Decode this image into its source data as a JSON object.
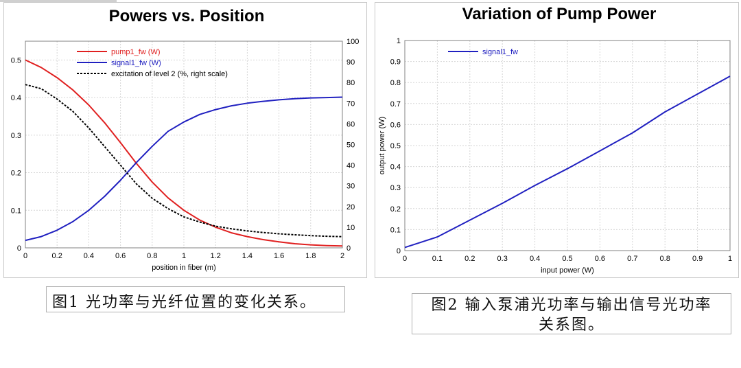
{
  "chart_data": [
    {
      "type": "line",
      "title": "Powers vs. Position",
      "xlabel": "position in fiber (m)",
      "ylabel": "",
      "y2label": "",
      "xlim": [
        0,
        2
      ],
      "ylim": [
        0,
        0.55
      ],
      "y2lim": [
        0,
        100
      ],
      "x_ticks": [
        "0",
        "0.2",
        "0.4",
        "0.6",
        "0.8",
        "1",
        "1.2",
        "1.4",
        "1.6",
        "1.8",
        "2"
      ],
      "y_ticks": [
        "0",
        "0.1",
        "0.2",
        "0.3",
        "0.4",
        "0.5"
      ],
      "y2_ticks": [
        "0",
        "10",
        "20",
        "30",
        "40",
        "50",
        "60",
        "70",
        "80",
        "90",
        "100"
      ],
      "grid": true,
      "legend_position": "top-left",
      "series": [
        {
          "name": "pump1_fw (W)",
          "color": "#e02020",
          "axis": "left",
          "style": "solid",
          "x": [
            0,
            0.1,
            0.2,
            0.3,
            0.4,
            0.5,
            0.6,
            0.7,
            0.8,
            0.9,
            1.0,
            1.1,
            1.2,
            1.3,
            1.4,
            1.5,
            1.6,
            1.7,
            1.8,
            1.9,
            2.0
          ],
          "y": [
            0.5,
            0.48,
            0.453,
            0.42,
            0.38,
            0.333,
            0.28,
            0.225,
            0.175,
            0.133,
            0.1,
            0.074,
            0.055,
            0.04,
            0.03,
            0.022,
            0.016,
            0.011,
            0.008,
            0.006,
            0.005
          ]
        },
        {
          "name": "signal1_fw (W)",
          "color": "#2020c0",
          "axis": "left",
          "style": "solid",
          "x": [
            0,
            0.1,
            0.2,
            0.3,
            0.4,
            0.5,
            0.6,
            0.7,
            0.8,
            0.9,
            1.0,
            1.1,
            1.2,
            1.3,
            1.4,
            1.5,
            1.6,
            1.7,
            1.8,
            1.9,
            2.0
          ],
          "y": [
            0.02,
            0.03,
            0.047,
            0.07,
            0.1,
            0.137,
            0.18,
            0.227,
            0.27,
            0.31,
            0.335,
            0.355,
            0.368,
            0.378,
            0.385,
            0.39,
            0.394,
            0.397,
            0.399,
            0.4,
            0.401
          ]
        },
        {
          "name": "excitation of level 2 (%, right scale)",
          "color": "#000000",
          "axis": "right",
          "style": "dashed",
          "x": [
            0,
            0.1,
            0.2,
            0.3,
            0.4,
            0.5,
            0.6,
            0.7,
            0.8,
            0.9,
            1.0,
            1.1,
            1.2,
            1.3,
            1.4,
            1.5,
            1.6,
            1.7,
            1.8,
            1.9,
            2.0
          ],
          "y": [
            79,
            77,
            72,
            66,
            58,
            49,
            40,
            31,
            24,
            19,
            15,
            12.5,
            10.5,
            9.2,
            8.2,
            7.4,
            6.8,
            6.3,
            5.9,
            5.6,
            5.4
          ]
        }
      ]
    },
    {
      "type": "line",
      "title": "Variation of Pump Power",
      "xlabel": "input power (W)",
      "ylabel": "output power (W)",
      "xlim": [
        0,
        1
      ],
      "ylim": [
        0,
        1
      ],
      "x_ticks": [
        "0",
        "0.1",
        "0.2",
        "0.3",
        "0.4",
        "0.5",
        "0.6",
        "0.7",
        "0.8",
        "0.9",
        "1"
      ],
      "y_ticks": [
        "0",
        "0.1",
        "0.2",
        "0.3",
        "0.4",
        "0.5",
        "0.6",
        "0.7",
        "0.8",
        "0.9",
        "1"
      ],
      "grid": true,
      "legend_position": "top-left",
      "series": [
        {
          "name": "signal1_fw",
          "color": "#2020c0",
          "axis": "left",
          "style": "solid",
          "x": [
            0,
            0.05,
            0.1,
            0.2,
            0.3,
            0.4,
            0.5,
            0.6,
            0.7,
            0.8,
            0.9,
            1.0
          ],
          "y": [
            0.015,
            0.04,
            0.065,
            0.145,
            0.225,
            0.31,
            0.39,
            0.475,
            0.56,
            0.66,
            0.745,
            0.83
          ]
        }
      ]
    }
  ],
  "captions": {
    "fig1": "图1 光功率与光纤位置的变化关系。",
    "fig2_line1": "图2 输入泵浦光功率与输出信号光功率",
    "fig2_line2": "关系图。"
  }
}
